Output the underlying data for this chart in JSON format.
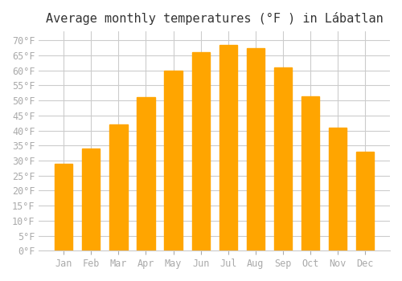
{
  "title": "Average monthly temperatures (°F ) in Lábatlan",
  "months": [
    "Jan",
    "Feb",
    "Mar",
    "Apr",
    "May",
    "Jun",
    "Jul",
    "Aug",
    "Sep",
    "Oct",
    "Nov",
    "Dec"
  ],
  "values": [
    29,
    34,
    42,
    51,
    60,
    66,
    68.5,
    67.5,
    61,
    51.5,
    41,
    33
  ],
  "bar_color": "#FFA500",
  "bar_color_light": "#FFB833",
  "bar_edge_color": "#FFA500",
  "ylim": [
    0,
    73
  ],
  "yticks": [
    0,
    5,
    10,
    15,
    20,
    25,
    30,
    35,
    40,
    45,
    50,
    55,
    60,
    65,
    70
  ],
  "grid_color": "#cccccc",
  "background_color": "#ffffff",
  "title_fontsize": 11,
  "tick_fontsize": 8.5,
  "tick_label_color": "#aaaaaa",
  "axis_label_color": "#aaaaaa",
  "font_family": "monospace"
}
